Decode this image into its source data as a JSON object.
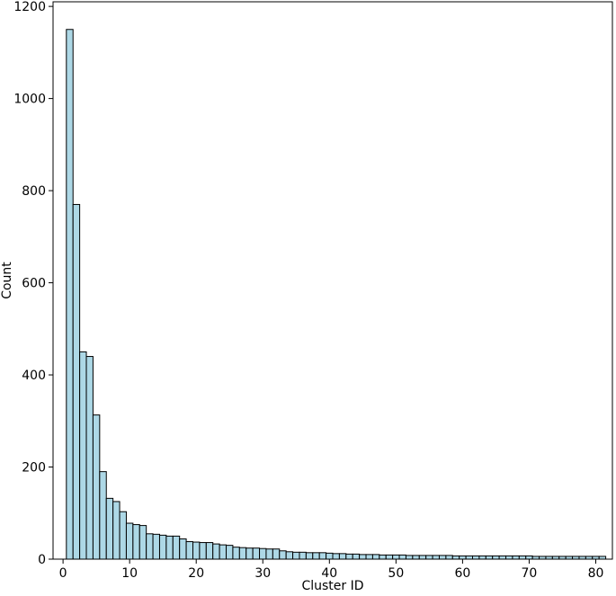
{
  "chart_data": {
    "type": "bar",
    "title": "",
    "xlabel": "Cluster ID",
    "ylabel": "Count",
    "xlim": [
      -1.5,
      82.5
    ],
    "ylim": [
      0,
      1210
    ],
    "x_ticks": [
      0,
      10,
      20,
      30,
      40,
      50,
      60,
      70,
      80
    ],
    "y_ticks": [
      0,
      200,
      400,
      600,
      800,
      1000,
      1200
    ],
    "grid": false,
    "legend": "none",
    "bar_color": "#add8e6",
    "bar_edge_color": "#000000",
    "categories": [
      1,
      2,
      3,
      4,
      5,
      6,
      7,
      8,
      9,
      10,
      11,
      12,
      13,
      14,
      15,
      16,
      17,
      18,
      19,
      20,
      21,
      22,
      23,
      24,
      25,
      26,
      27,
      28,
      29,
      30,
      31,
      32,
      33,
      34,
      35,
      36,
      37,
      38,
      39,
      40,
      41,
      42,
      43,
      44,
      45,
      46,
      47,
      48,
      49,
      50,
      51,
      52,
      53,
      54,
      55,
      56,
      57,
      58,
      59,
      60,
      61,
      62,
      63,
      64,
      65,
      66,
      67,
      68,
      69,
      70,
      71,
      72,
      73,
      74,
      75,
      76,
      77,
      78,
      79,
      80,
      81
    ],
    "values": [
      1150,
      770,
      450,
      440,
      313,
      190,
      132,
      125,
      103,
      78,
      75,
      73,
      55,
      54,
      52,
      50,
      50,
      44,
      38,
      37,
      36,
      36,
      33,
      31,
      30,
      26,
      25,
      24,
      24,
      23,
      22,
      22,
      18,
      16,
      15,
      15,
      14,
      14,
      14,
      13,
      12,
      12,
      11,
      11,
      10,
      10,
      10,
      9,
      9,
      9,
      9,
      8,
      8,
      8,
      8,
      8,
      8,
      8,
      7,
      7,
      7,
      7,
      7,
      7,
      7,
      7,
      7,
      7,
      7,
      7,
      6,
      6,
      6,
      6,
      6,
      6,
      6,
      6,
      6,
      6,
      6
    ]
  }
}
